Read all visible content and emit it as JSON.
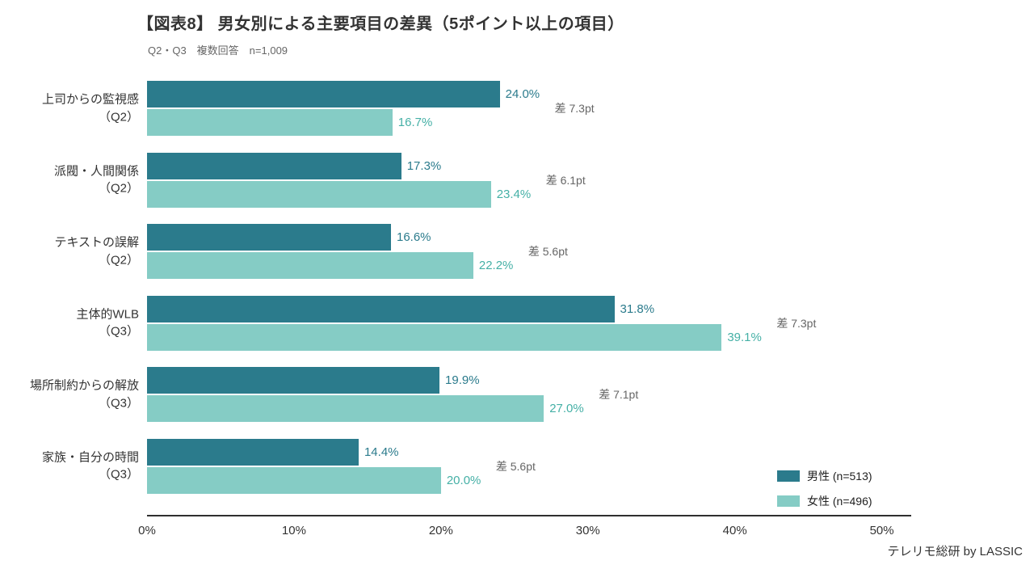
{
  "chart_data": {
    "type": "bar",
    "orientation": "horizontal",
    "title": "【図表8】 男女別による主要項目の差異（5ポイント以上の項目）",
    "subtitle": "Q2・Q3　複数回答　n=1,009",
    "categories": [
      "上司からの監視感\n（Q2）",
      "派閥・人間関係\n（Q2）",
      "テキストの誤解\n（Q2）",
      "主体的WLB\n（Q3）",
      "場所制約からの解放\n（Q3）",
      "家族・自分の時間\n（Q3）"
    ],
    "series": [
      {
        "name": "男性 (n=513)",
        "color": "#2b7b8c",
        "label_color": "#2b7b8c",
        "values": [
          24.0,
          17.3,
          16.6,
          31.8,
          19.9,
          14.4
        ],
        "labels": [
          "24.0%",
          "17.3%",
          "16.6%",
          "31.8%",
          "19.9%",
          "14.4%"
        ]
      },
      {
        "name": "女性 (n=496)",
        "color": "#85ccc5",
        "label_color": "#45b0a6",
        "values": [
          16.7,
          23.4,
          22.2,
          39.1,
          27.0,
          20.0
        ],
        "labels": [
          "16.7%",
          "23.4%",
          "22.2%",
          "39.1%",
          "27.0%",
          "20.0%"
        ]
      }
    ],
    "diff_labels": [
      "差 7.3pt",
      "差 6.1pt",
      "差 5.6pt",
      "差 7.3pt",
      "差 7.1pt",
      "差 5.6pt"
    ],
    "x_ticks": [
      "0%",
      "10%",
      "20%",
      "30%",
      "40%",
      "50%"
    ],
    "x_tick_values": [
      0,
      10,
      20,
      30,
      40,
      50
    ],
    "xlim": [
      0,
      52
    ],
    "grid": false,
    "legend_position": "bottom-right"
  },
  "footer": {
    "source": "テレリモ総研 by LASSIC"
  }
}
